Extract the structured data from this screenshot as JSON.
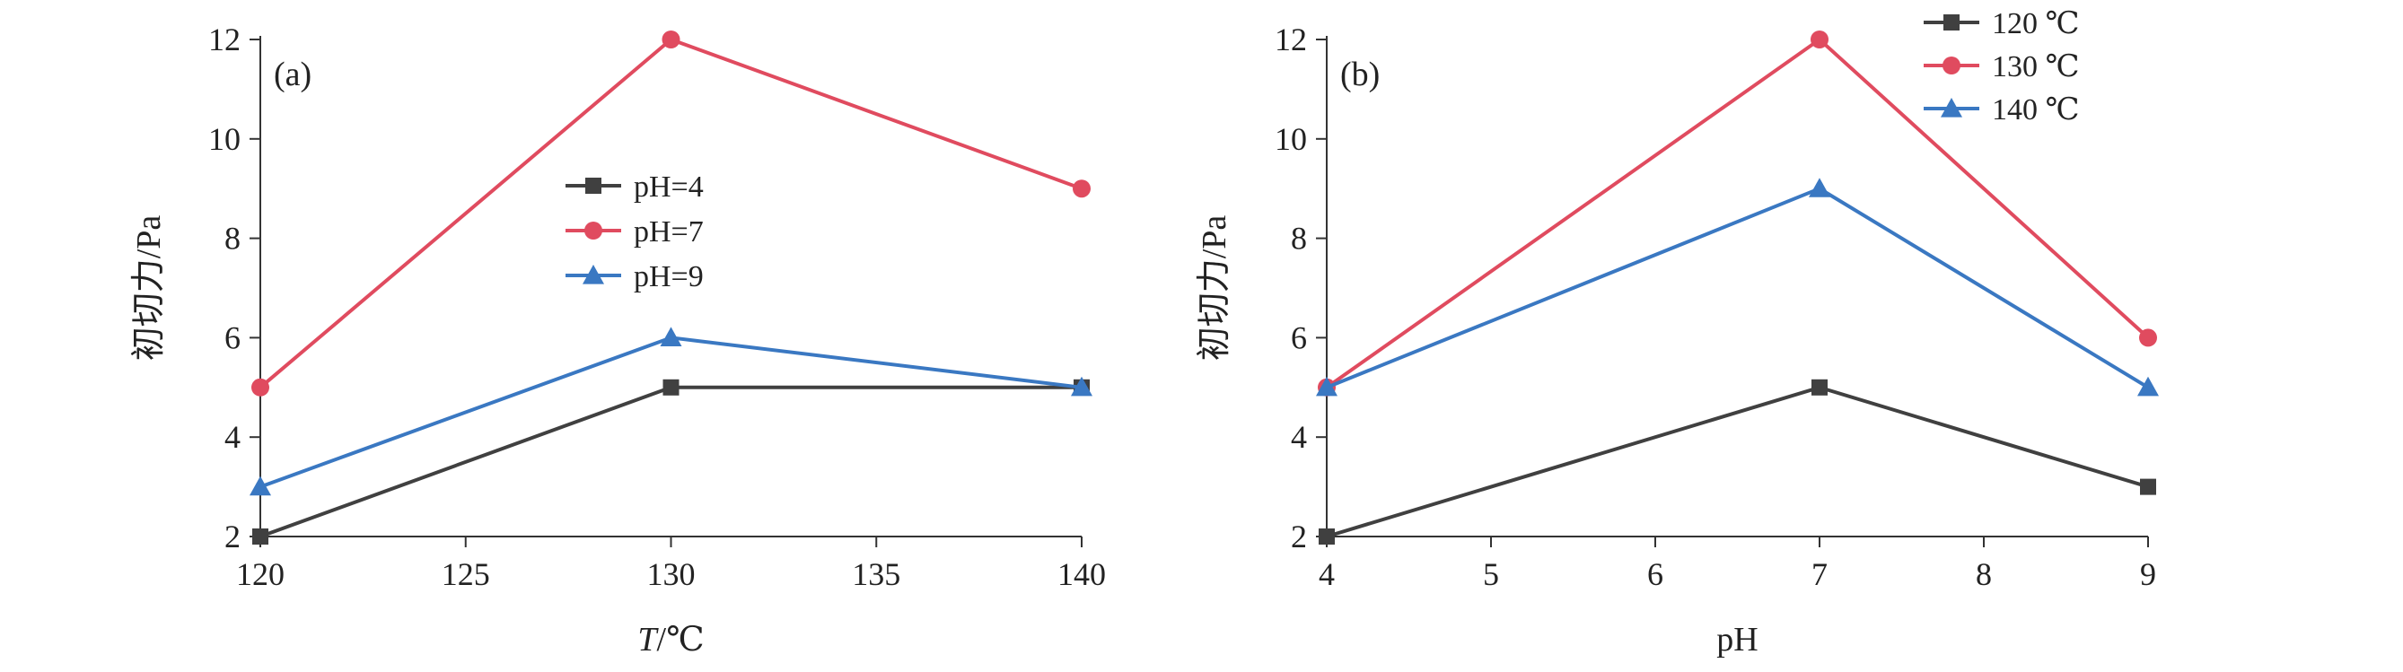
{
  "chart_data": [
    {
      "type": "line",
      "panel_label": "(a)",
      "xlabel_italic": "T",
      "xlabel_rest": "/℃",
      "ylabel": "初切力/Pa",
      "xlim": [
        120,
        140
      ],
      "ylim": [
        2,
        12
      ],
      "xticks": [
        120,
        125,
        130,
        135,
        140
      ],
      "yticks": [
        2,
        4,
        6,
        8,
        10,
        12
      ],
      "legend_position": "center",
      "x": [
        120,
        130,
        140
      ],
      "series": [
        {
          "name": "pH=4",
          "values": [
            2,
            5,
            5
          ],
          "color": "#404040",
          "marker": "square"
        },
        {
          "name": "pH=7",
          "values": [
            5,
            12,
            9
          ],
          "color": "#e04b5f",
          "marker": "circle"
        },
        {
          "name": "pH=9",
          "values": [
            3,
            6,
            5
          ],
          "color": "#3a78c2",
          "marker": "triangle"
        }
      ]
    },
    {
      "type": "line",
      "panel_label": "(b)",
      "xlabel_italic": "",
      "xlabel_rest": "pH",
      "ylabel": "初切力/Pa",
      "xlim": [
        4,
        9
      ],
      "ylim": [
        2,
        12
      ],
      "xticks": [
        4,
        5,
        6,
        7,
        8,
        9
      ],
      "yticks": [
        2,
        4,
        6,
        8,
        10,
        12
      ],
      "legend_position": "top-right",
      "x": [
        4,
        7,
        9
      ],
      "series": [
        {
          "name": "120 ℃",
          "values": [
            2,
            5,
            3
          ],
          "color": "#404040",
          "marker": "square"
        },
        {
          "name": "130 ℃",
          "values": [
            5,
            12,
            6
          ],
          "color": "#e04b5f",
          "marker": "circle"
        },
        {
          "name": "140 ℃",
          "values": [
            5,
            9,
            5
          ],
          "color": "#3a78c2",
          "marker": "triangle"
        }
      ]
    }
  ]
}
